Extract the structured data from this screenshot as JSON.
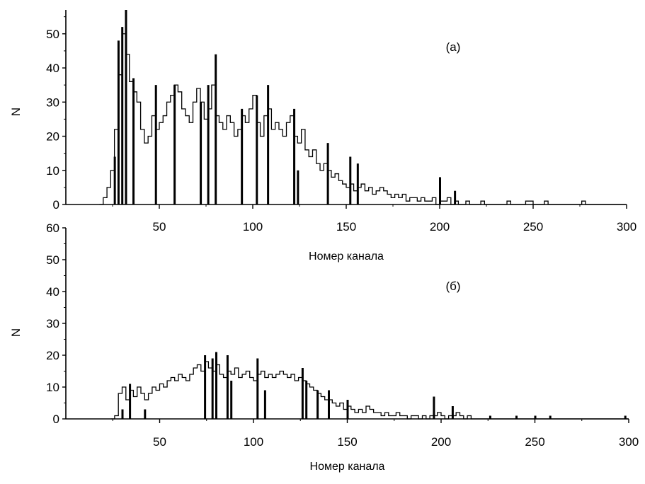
{
  "chart_data": [
    {
      "type": "line",
      "annotation": "(a)",
      "xlabel": "Номер канала",
      "ylabel": "N",
      "xlim": [
        0,
        300
      ],
      "ylim": [
        0,
        57
      ],
      "xticks": [
        50,
        100,
        150,
        200,
        250,
        300
      ],
      "yticks": [
        0,
        10,
        20,
        30,
        40,
        50
      ],
      "x": [
        18,
        20,
        22,
        24,
        26,
        28,
        30,
        32,
        34,
        36,
        38,
        40,
        42,
        44,
        46,
        48,
        50,
        52,
        54,
        56,
        58,
        60,
        62,
        64,
        66,
        68,
        70,
        72,
        74,
        76,
        78,
        80,
        82,
        84,
        86,
        88,
        90,
        92,
        94,
        96,
        98,
        100,
        102,
        104,
        106,
        108,
        110,
        112,
        114,
        116,
        118,
        120,
        122,
        124,
        126,
        128,
        130,
        132,
        134,
        136,
        138,
        140,
        142,
        144,
        146,
        148,
        150,
        152,
        154,
        156,
        158,
        160,
        162,
        164,
        166,
        168,
        170,
        172,
        174,
        176,
        178,
        180,
        182,
        184,
        186,
        188,
        190,
        192,
        194,
        196,
        198,
        200,
        202,
        204,
        206,
        208,
        210,
        212,
        214,
        216,
        218,
        220,
        222,
        224,
        226,
        228,
        230,
        232,
        234,
        236,
        238,
        240,
        242,
        244,
        246,
        248,
        250,
        252,
        254,
        256,
        258,
        260,
        262,
        264,
        266,
        268,
        270,
        272,
        274,
        276,
        278,
        280,
        282,
        284,
        286,
        288,
        290,
        292,
        294,
        296,
        298
      ],
      "values": [
        0,
        2,
        5,
        10,
        22,
        38,
        50,
        44,
        36,
        33,
        30,
        22,
        18,
        20,
        26,
        22,
        24,
        26,
        30,
        32,
        35,
        33,
        28,
        26,
        24,
        30,
        34,
        30,
        25,
        28,
        35,
        26,
        24,
        22,
        26,
        24,
        20,
        22,
        26,
        24,
        28,
        32,
        24,
        20,
        26,
        28,
        22,
        24,
        22,
        20,
        24,
        26,
        20,
        18,
        22,
        16,
        14,
        16,
        12,
        10,
        12,
        10,
        8,
        9,
        7,
        6,
        5,
        6,
        4,
        5,
        6,
        4,
        5,
        3,
        4,
        5,
        4,
        3,
        2,
        3,
        2,
        3,
        1,
        2,
        2,
        1,
        2,
        1,
        1,
        2,
        0,
        1,
        1,
        2,
        0,
        1,
        0,
        0,
        1,
        0,
        0,
        0,
        1,
        0,
        0,
        0,
        0,
        0,
        0,
        1,
        0,
        0,
        0,
        0,
        1,
        1,
        0,
        0,
        0,
        1,
        0,
        0,
        0,
        0,
        0,
        0,
        0,
        0,
        0,
        1,
        0,
        0,
        0,
        0,
        0,
        0,
        0,
        0,
        0,
        0,
        0
      ],
      "spikes": [
        [
          26,
          14
        ],
        [
          28,
          48
        ],
        [
          30,
          52
        ],
        [
          32,
          57
        ],
        [
          36,
          37
        ],
        [
          48,
          35
        ],
        [
          58,
          35
        ],
        [
          72,
          30
        ],
        [
          76,
          35
        ],
        [
          80,
          44
        ],
        [
          94,
          28
        ],
        [
          102,
          32
        ],
        [
          108,
          35
        ],
        [
          122,
          28
        ],
        [
          124,
          10
        ],
        [
          140,
          18
        ],
        [
          152,
          14
        ],
        [
          156,
          12
        ],
        [
          176,
          0
        ],
        [
          200,
          8
        ],
        [
          208,
          4
        ]
      ]
    },
    {
      "type": "line",
      "annotation": "(б)",
      "xlabel": "Номер канала",
      "ylabel": "N",
      "xlim": [
        0,
        300
      ],
      "ylim": [
        0,
        60
      ],
      "xticks": [
        50,
        100,
        150,
        200,
        250,
        300
      ],
      "yticks": [
        0,
        10,
        20,
        30,
        40,
        50,
        60
      ],
      "x": [
        24,
        26,
        28,
        30,
        32,
        34,
        36,
        38,
        40,
        42,
        44,
        46,
        48,
        50,
        52,
        54,
        56,
        58,
        60,
        62,
        64,
        66,
        68,
        70,
        72,
        74,
        76,
        78,
        80,
        82,
        84,
        86,
        88,
        90,
        92,
        94,
        96,
        98,
        100,
        102,
        104,
        106,
        108,
        110,
        112,
        114,
        116,
        118,
        120,
        122,
        124,
        126,
        128,
        130,
        132,
        134,
        136,
        138,
        140,
        142,
        144,
        146,
        148,
        150,
        152,
        154,
        156,
        158,
        160,
        162,
        164,
        166,
        168,
        170,
        172,
        174,
        176,
        178,
        180,
        182,
        184,
        186,
        188,
        190,
        192,
        194,
        196,
        198,
        200,
        202,
        204,
        206,
        208,
        210,
        212,
        214,
        216,
        218,
        220,
        222,
        224,
        226,
        228,
        230,
        232,
        234,
        236,
        238,
        240,
        242,
        244,
        246,
        248,
        250,
        252,
        254,
        256,
        258,
        260,
        262,
        264,
        266,
        268,
        270,
        272,
        274,
        276,
        278,
        280,
        282,
        284,
        286,
        288,
        290,
        292,
        294,
        296,
        298
      ],
      "values": [
        0,
        1,
        8,
        10,
        6,
        9,
        7,
        10,
        8,
        6,
        8,
        10,
        9,
        11,
        10,
        12,
        13,
        12,
        14,
        13,
        12,
        14,
        16,
        17,
        15,
        18,
        16,
        15,
        17,
        14,
        13,
        15,
        14,
        16,
        13,
        14,
        15,
        13,
        12,
        14,
        15,
        13,
        14,
        13,
        14,
        15,
        14,
        13,
        14,
        12,
        13,
        12,
        11,
        10,
        9,
        8,
        7,
        6,
        6,
        5,
        4,
        5,
        3,
        4,
        3,
        2,
        3,
        2,
        4,
        3,
        2,
        2,
        1,
        2,
        1,
        1,
        2,
        1,
        1,
        0,
        1,
        1,
        0,
        1,
        0,
        1,
        1,
        2,
        1,
        0,
        1,
        1,
        2,
        1,
        0,
        1,
        0,
        0,
        0,
        0,
        0,
        0,
        0,
        0,
        0,
        0,
        0,
        0,
        0,
        0,
        0,
        0,
        0,
        0,
        0,
        0,
        0,
        0,
        0,
        0,
        0,
        0,
        0,
        0,
        0,
        0,
        0,
        0,
        0,
        0,
        0,
        0,
        0,
        0,
        0,
        0,
        0,
        0
      ],
      "spikes": [
        [
          30,
          3
        ],
        [
          34,
          11
        ],
        [
          42,
          3
        ],
        [
          74,
          20
        ],
        [
          78,
          19
        ],
        [
          80,
          21
        ],
        [
          86,
          20
        ],
        [
          88,
          12
        ],
        [
          102,
          19
        ],
        [
          106,
          9
        ],
        [
          126,
          16
        ],
        [
          128,
          12
        ],
        [
          134,
          9
        ],
        [
          140,
          9
        ],
        [
          150,
          6
        ],
        [
          196,
          7
        ],
        [
          206,
          4
        ],
        [
          226,
          1
        ],
        [
          240,
          1
        ],
        [
          250,
          1
        ],
        [
          258,
          1
        ],
        [
          298,
          1
        ]
      ]
    }
  ]
}
